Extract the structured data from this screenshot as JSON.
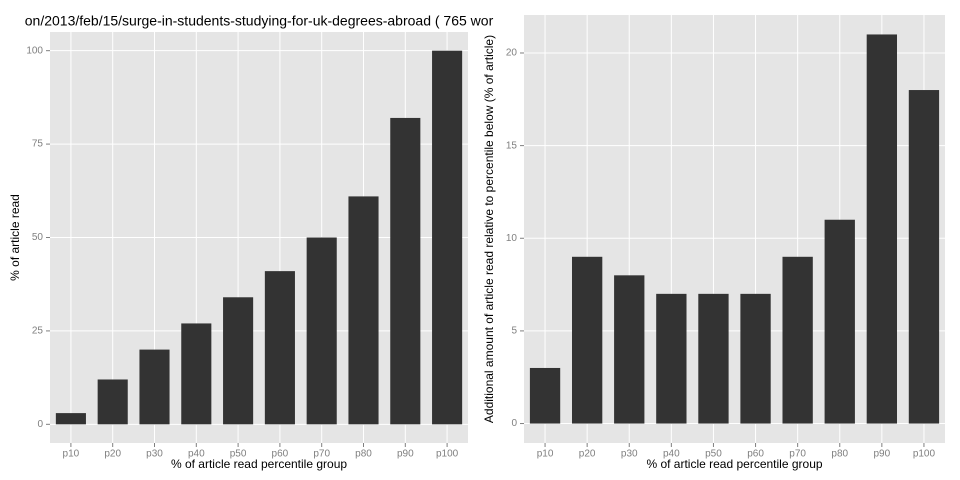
{
  "chart_data": [
    {
      "type": "bar",
      "title": "on/2013/feb/15/surge-in-students-studying-for-uk-degrees-abroad ( 765 wor",
      "x_label": "% of article read percentile group",
      "y_label": "% of article read",
      "categories": [
        "p10",
        "p20",
        "p30",
        "p40",
        "p50",
        "p60",
        "p70",
        "p80",
        "p90",
        "p100"
      ],
      "values": [
        3,
        12,
        20,
        27,
        34,
        41,
        50,
        61,
        82,
        100
      ],
      "color": "#333333",
      "ylim": [
        -5,
        105
      ],
      "yticks": [
        0,
        25,
        50,
        75,
        100
      ],
      "grid": true
    },
    {
      "type": "bar",
      "x_label": "% of article read percentile group",
      "y_label": "Additional amount of article read relative to percentile below (% of article)",
      "categories": [
        "p10",
        "p20",
        "p30",
        "p40",
        "p50",
        "p60",
        "p70",
        "p80",
        "p90",
        "p100"
      ],
      "values": [
        3,
        9,
        8,
        7,
        7,
        7,
        9,
        11,
        21,
        18
      ],
      "color": "#333333",
      "ylim": [
        -1.05,
        22.05
      ],
      "yticks": [
        0,
        5,
        10,
        15,
        20
      ],
      "grid": true
    }
  ]
}
